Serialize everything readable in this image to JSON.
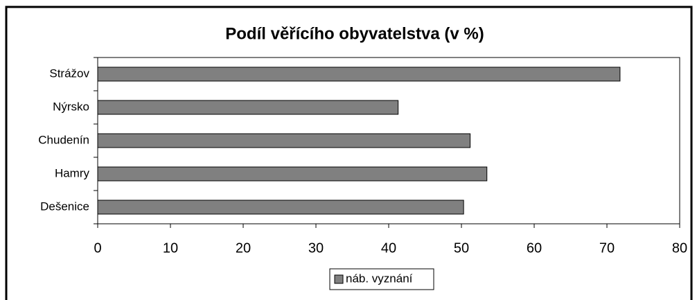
{
  "chart_data": {
    "type": "bar",
    "orientation": "horizontal",
    "title": "Podíl věřícího obyvatelstva (v %)",
    "categories": [
      "Strážov",
      "Nýrsko",
      "Chudenín",
      "Hamry",
      "Dešenice"
    ],
    "series": [
      {
        "name": "náb. vyznání",
        "color": "#808080",
        "values": [
          71.8,
          41.3,
          51.2,
          53.5,
          50.3
        ]
      }
    ],
    "xlim": [
      0,
      80
    ],
    "xticks": [
      0,
      10,
      20,
      30,
      40,
      50,
      60,
      70,
      80
    ],
    "grid": false,
    "legend": "bottom"
  }
}
